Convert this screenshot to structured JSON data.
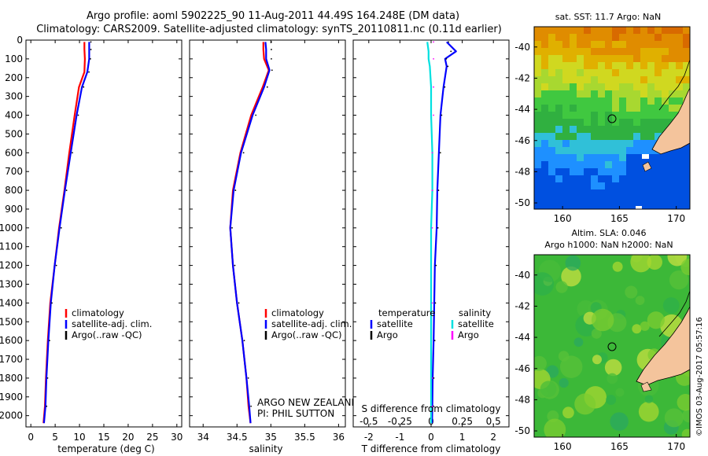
{
  "header": {
    "line1": "Argo profile: aoml 5902225_90 11-Aug-2011 44.49S 164.248E (DM data)",
    "line2": "Climatology: CARS2009. Satellite-adjusted climatology: synTS_20110811.nc (0.11d earlier)"
  },
  "colors": {
    "climatology": "#ff0000",
    "satellite": "#0000ff",
    "argo": "#000000",
    "satellite_salinity": "#00e0e0",
    "argo_salinity": "#ff00ff",
    "land": "#f4c49c"
  },
  "chart_data": [
    {
      "type": "line",
      "panel": "temperature",
      "xlabel": "temperature (deg C)",
      "ylabel": "",
      "xlim": [
        -1,
        31
      ],
      "ylim": [
        2060,
        0
      ],
      "y_reversed": true,
      "xticks": [
        0,
        5,
        10,
        15,
        20,
        25,
        30
      ],
      "yticks": [
        0,
        100,
        200,
        300,
        400,
        500,
        600,
        700,
        800,
        900,
        1000,
        1100,
        1200,
        1300,
        1400,
        1500,
        1600,
        1700,
        1800,
        1900,
        2000
      ],
      "series": [
        {
          "name": "climatology",
          "color": "#ff0000",
          "x": [
            11.0,
            11.0,
            11.1,
            11.0,
            9.9,
            9.0,
            7.9,
            6.9,
            5.8,
            4.9,
            4.0,
            3.5,
            3.1,
            2.9,
            2.6
          ],
          "y": [
            10,
            50,
            100,
            170,
            250,
            400,
            600,
            800,
            1000,
            1200,
            1400,
            1600,
            1800,
            1950,
            2040
          ]
        },
        {
          "name": "satellite-adj. clim.",
          "color": "#0000ff",
          "x": [
            12.0,
            12.0,
            12.0,
            11.6,
            10.5,
            9.4,
            8.2,
            7.0,
            5.9,
            4.9,
            4.1,
            3.6,
            3.2,
            3.0,
            2.7
          ],
          "y": [
            10,
            50,
            100,
            170,
            250,
            400,
            600,
            800,
            1000,
            1200,
            1400,
            1600,
            1800,
            1950,
            2040
          ]
        },
        {
          "name": "Argo(..raw -QC)",
          "color": "#000000",
          "style": "dots",
          "x": [
            12.1,
            12.1,
            12.0,
            11.7,
            10.6,
            9.5,
            8.3,
            7.1,
            6.0,
            5.0,
            4.1,
            3.6,
            3.2,
            3.0
          ],
          "y": [
            10,
            50,
            100,
            170,
            250,
            400,
            600,
            800,
            1000,
            1200,
            1400,
            1600,
            1800,
            1950
          ]
        }
      ],
      "legend": [
        "climatology",
        "satellite-adj. clim.",
        "Argo(..raw -QC)"
      ],
      "legend_position": "lower-right"
    },
    {
      "type": "line",
      "panel": "salinity",
      "xlabel": "salinity",
      "ylabel": "",
      "xlim": [
        33.8,
        36.1
      ],
      "ylim": [
        2060,
        0
      ],
      "y_reversed": true,
      "xticks": [
        34,
        34.5,
        35,
        35.5,
        36
      ],
      "series": [
        {
          "name": "climatology",
          "color": "#ff0000",
          "x": [
            34.89,
            34.89,
            34.9,
            34.97,
            34.88,
            34.71,
            34.55,
            34.44,
            34.4,
            34.44,
            34.5,
            34.58,
            34.64,
            34.67,
            34.7
          ],
          "y": [
            10,
            50,
            100,
            160,
            250,
            400,
            600,
            800,
            1000,
            1200,
            1400,
            1600,
            1800,
            1950,
            2040
          ]
        },
        {
          "name": "satellite-adj. clim.",
          "color": "#0000ff",
          "x": [
            34.92,
            34.93,
            34.93,
            34.98,
            34.9,
            34.73,
            34.56,
            34.45,
            34.4,
            34.44,
            34.5,
            34.58,
            34.64,
            34.68,
            34.7
          ],
          "y": [
            10,
            50,
            100,
            160,
            250,
            400,
            600,
            800,
            1000,
            1200,
            1400,
            1600,
            1800,
            1950,
            2040
          ]
        },
        {
          "name": "Argo(..raw -QC)",
          "color": "#000000",
          "style": "dots",
          "x": [
            34.99,
            34.99,
            34.99,
            35.0,
            34.93,
            34.76,
            34.58,
            34.46,
            34.41,
            34.45,
            34.51,
            34.59,
            34.65,
            34.69
          ],
          "y": [
            10,
            50,
            100,
            160,
            250,
            400,
            600,
            800,
            1000,
            1200,
            1400,
            1600,
            1800,
            1950
          ]
        }
      ],
      "legend": [
        "climatology",
        "satellite-adj. clim.",
        "Argo(..raw -QC)"
      ],
      "annotations": [
        "ARGO NEW ZEALAND",
        "PI: PHIL SUTTON"
      ]
    },
    {
      "type": "line",
      "panel": "difference",
      "xlabel": "T difference from climatology",
      "xlabel_top": "S difference from climatology",
      "xlim": [
        -2.5,
        2.5
      ],
      "xticks": [
        -2,
        -1,
        0,
        1,
        2
      ],
      "xlim_top": [
        -0.625,
        0.625
      ],
      "xticks_top": [
        -0.5,
        -0.25,
        0,
        0.25,
        0.5
      ],
      "ylim": [
        2060,
        0
      ],
      "y_reversed": true,
      "series": [
        {
          "name": "temperature satellite",
          "color": "#0000ff",
          "x": [
            0.5,
            0.8,
            0.45,
            0.5,
            0.4,
            0.3,
            0.25,
            0.2,
            0.18,
            0.12,
            0.1,
            0.08,
            0.05,
            0.04,
            0.03
          ],
          "y": [
            10,
            60,
            100,
            140,
            250,
            400,
            600,
            800,
            1000,
            1200,
            1400,
            1600,
            1800,
            1950,
            2040
          ]
        },
        {
          "name": "temperature Argo",
          "color": "#000000",
          "style": "dots",
          "x": [
            0.52,
            0.6,
            0.45,
            0.5,
            0.4,
            0.3,
            0.26,
            0.2,
            0.18,
            0.12,
            0.1,
            0.08,
            0.05,
            0.04
          ],
          "y": [
            10,
            60,
            100,
            140,
            250,
            400,
            600,
            800,
            1000,
            1200,
            1400,
            1600,
            1800,
            1950
          ]
        },
        {
          "name": "salinity satellite",
          "color": "#00e0e0",
          "x": [
            -0.03,
            -0.02,
            -0.02,
            -0.01,
            0.0,
            0.0,
            0.01,
            0.01,
            0.0,
            0.0,
            0.0,
            0.0,
            0.0,
            0.0,
            0.0
          ],
          "y": [
            10,
            60,
            100,
            140,
            250,
            400,
            600,
            800,
            1000,
            1200,
            1400,
            1600,
            1800,
            1950,
            2040
          ],
          "x_axis": "top"
        },
        {
          "name": "salinity Argo",
          "color": "#ff00ff",
          "style": "dots",
          "x": [
            0.01,
            0.01,
            0.01,
            0.01,
            0.0,
            0.0,
            0.0,
            0.0,
            0.0,
            0.0
          ],
          "y": [
            10,
            100,
            250,
            400,
            600,
            800,
            1000,
            1400,
            1800,
            1950
          ],
          "x_axis": "top"
        }
      ],
      "legend_temperature": {
        "title": "temperature",
        "items": [
          "satellite",
          "Argo"
        ]
      },
      "legend_salinity": {
        "title": "salinity",
        "items": [
          "satellite",
          "Argo"
        ]
      }
    },
    {
      "type": "heatmap",
      "panel": "sst-map",
      "title": "sat. SST: 11.7  Argo: NaN",
      "xlim": [
        157.5,
        171.2
      ],
      "ylim": [
        -50.4,
        -38.7
      ],
      "xticks": [
        160,
        165,
        170
      ],
      "yticks": [
        -40,
        -42,
        -44,
        -46,
        -48,
        -50
      ],
      "marker": {
        "lon": 164.248,
        "lat": -44.49
      }
    },
    {
      "type": "heatmap",
      "panel": "sla-map",
      "title_line1": "Altim. SLA: 0.046",
      "title_line2": "Argo h1000: NaN  h2000: NaN",
      "xlim": [
        157.5,
        171.2
      ],
      "ylim": [
        -50.4,
        -38.7
      ],
      "xticks": [
        160,
        165,
        170
      ],
      "yticks": [
        -40,
        -42,
        -44,
        -46,
        -48,
        -50
      ],
      "marker": {
        "lon": 164.248,
        "lat": -44.49
      }
    }
  ],
  "credit": "©IMOS 03-Aug-2017 05:57:16"
}
